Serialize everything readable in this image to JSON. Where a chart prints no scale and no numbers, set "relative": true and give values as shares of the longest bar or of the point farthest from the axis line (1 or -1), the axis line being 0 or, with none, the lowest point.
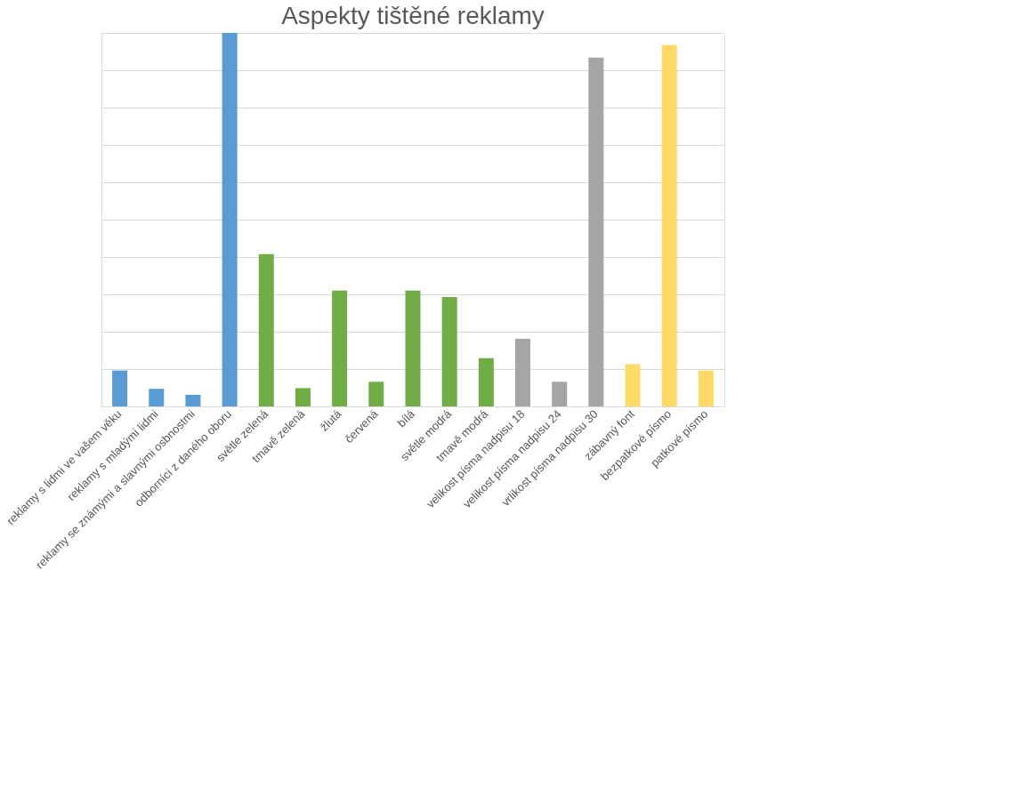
{
  "chart_data": {
    "type": "bar",
    "title": "Aspekty tištěné reklamy",
    "relative": true,
    "grid": "y",
    "categories": [
      "reklamy s lidmi ve vašem věku",
      "reklamy s mladými lidmi",
      "reklamy se známými a slavnými osbnostmi",
      "odborníci z daného oboru",
      "světle zelená",
      "tmavě zelená",
      "žlutá",
      "červená",
      "bílá",
      "světle modrá",
      "tmavě modrá",
      "velikost písma nadpisu 18",
      "velikost písma nadpisu 24",
      "vrlikost písma nadpisu 30",
      "zábavný font",
      "bezpatkové písmo",
      "patkové písmo"
    ],
    "values": [
      0.096,
      0.047,
      0.031,
      1,
      0.408,
      0.049,
      0.31,
      0.066,
      0.31,
      0.293,
      0.129,
      0.181,
      0.066,
      0.934,
      0.113,
      0.967,
      0.096
    ],
    "colors": [
      "#5b9bd5",
      "#5b9bd5",
      "#5b9bd5",
      "#5b9bd5",
      "#70ad47",
      "#70ad47",
      "#70ad47",
      "#70ad47",
      "#70ad47",
      "#70ad47",
      "#70ad47",
      "#a5a5a5",
      "#a5a5a5",
      "#a5a5a5",
      "#ffd966",
      "#ffd966",
      "#ffd966"
    ]
  }
}
